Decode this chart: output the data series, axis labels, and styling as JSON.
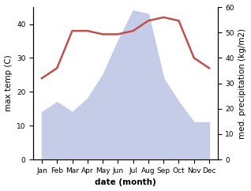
{
  "months": [
    "Jan",
    "Feb",
    "Mar",
    "Apr",
    "May",
    "Jun",
    "Jul",
    "Aug",
    "Sep",
    "Oct",
    "Nov",
    "Dec"
  ],
  "temperature": [
    24,
    27,
    38,
    38,
    37,
    37,
    38,
    41,
    42,
    41,
    30,
    27
  ],
  "precipitation": [
    14,
    17,
    14,
    18,
    25,
    35,
    44,
    43,
    24,
    17,
    11,
    11
  ],
  "temp_color": "#c0504d",
  "precip_fill_color": "#c5cce8",
  "precip_edge_color": "#aab4d8",
  "left_ylim": [
    0,
    45
  ],
  "right_ylim": [
    0,
    60
  ],
  "left_yticks": [
    0,
    10,
    20,
    30,
    40
  ],
  "right_yticks": [
    0,
    10,
    20,
    30,
    40,
    50,
    60
  ],
  "left_ylabel": "max temp (C)",
  "right_ylabel": "med. precipitation (kg/m2)",
  "xlabel": "date (month)",
  "label_fontsize": 7.5,
  "tick_fontsize": 6.5,
  "linewidth": 1.8
}
